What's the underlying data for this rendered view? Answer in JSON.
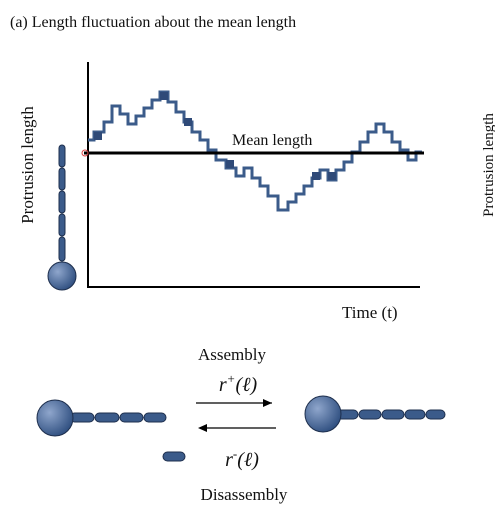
{
  "header": {
    "title": "(a) Length fluctuation about the mean length"
  },
  "plot": {
    "y_label": "Protrusion length",
    "mean_label": "Mean length",
    "x_label": "Time (t)",
    "clipped_label": "Protrusion length"
  },
  "reaction": {
    "top_label": "Assembly",
    "bottom_label": "Disassembly",
    "forward_rate": {
      "base": "r",
      "sup": "+",
      "arg": "(ℓ)"
    },
    "backward_rate": {
      "base": "r",
      "sup": "-",
      "arg": "(ℓ)"
    }
  }
}
